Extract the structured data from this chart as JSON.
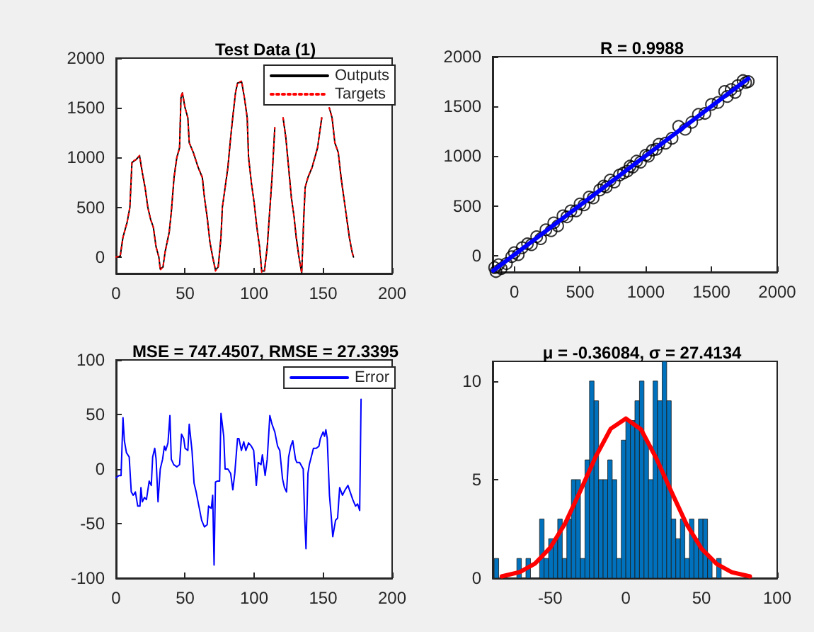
{
  "chart_data": [
    {
      "type": "line",
      "title": "Test Data (1)",
      "xlim": [
        0,
        200
      ],
      "xticks": [
        0,
        50,
        100,
        150,
        200
      ],
      "ylim": [
        -165,
        2000
      ],
      "yticks": [
        0,
        500,
        1000,
        1500,
        2000
      ],
      "legend": "top right",
      "grid": false,
      "x": [
        0,
        3,
        5,
        8,
        10,
        11.5,
        14.5,
        17,
        19,
        21,
        23,
        25,
        27,
        29,
        31,
        32,
        34,
        35.5,
        38.5,
        40,
        42,
        44,
        46,
        47,
        48,
        50,
        52,
        53,
        56,
        59.5,
        62.5,
        64,
        66,
        68,
        70,
        72,
        74,
        76,
        77,
        79,
        81,
        83,
        84.5,
        86.5,
        88,
        91,
        93,
        95,
        96,
        98,
        100,
        102,
        104,
        105.5,
        107.5,
        109.5,
        111,
        113,
        115,
        117,
        119,
        121,
        123,
        125,
        127,
        129,
        130.5,
        132.5,
        134.5,
        136,
        137,
        139,
        142,
        146,
        149,
        151,
        153,
        154.5,
        156.5,
        158.5,
        161,
        163,
        165,
        167,
        169,
        171,
        172
      ],
      "series": [
        {
          "name": "Outputs",
          "color": "#000000",
          "line_style": "solid",
          "values": [
            0,
            10,
            200,
            350,
            500,
            950,
            980,
            1020,
            850,
            700,
            500,
            380,
            300,
            100,
            0,
            -120,
            -100,
            50,
            250,
            450,
            800,
            1000,
            1100,
            1600,
            1650,
            1500,
            1400,
            1150,
            1050,
            900,
            800,
            600,
            400,
            150,
            0,
            -130,
            -100,
            200,
            500,
            700,
            900,
            1200,
            1400,
            1650,
            1750,
            1760,
            1600,
            1400,
            1000,
            750,
            550,
            300,
            100,
            -140,
            -140,
            100,
            400,
            800,
            1300,
            null,
            null,
            1400,
            1200,
            900,
            600,
            400,
            200,
            0,
            -160,
            400,
            700,
            800,
            900,
            1100,
            1400,
            null,
            null,
            1500,
            1400,
            1150,
            1050,
            800,
            600,
            400,
            200,
            50,
            0
          ]
        },
        {
          "name": "Targets",
          "color": "#ff0000",
          "line_style": "dotted",
          "values": [
            0,
            10,
            200,
            350,
            500,
            960,
            980,
            1020,
            850,
            700,
            500,
            380,
            300,
            100,
            0,
            -130,
            -100,
            50,
            250,
            450,
            800,
            1000,
            1100,
            1610,
            1660,
            1500,
            1400,
            1150,
            1050,
            900,
            800,
            600,
            400,
            150,
            0,
            -140,
            -100,
            200,
            500,
            700,
            900,
            1200,
            1400,
            1650,
            1750,
            1770,
            1600,
            1400,
            1000,
            750,
            550,
            300,
            100,
            -150,
            -140,
            100,
            400,
            800,
            1300,
            null,
            null,
            1400,
            1200,
            900,
            600,
            400,
            200,
            0,
            -160,
            400,
            700,
            800,
            900,
            1100,
            1400,
            null,
            null,
            1500,
            1400,
            1150,
            1050,
            800,
            600,
            400,
            200,
            50,
            0
          ]
        }
      ]
    },
    {
      "type": "scatter",
      "title": "R = 0.9988",
      "xlim": [
        -165,
        2000
      ],
      "xticks": [
        0,
        500,
        1000,
        1500,
        2000
      ],
      "ylim": [
        -165,
        2000
      ],
      "yticks": [
        0,
        500,
        1000,
        1500,
        2000
      ],
      "grid": false,
      "series": [
        {
          "type": "scatter",
          "color": "#000000",
          "marker": "circle",
          "x": [
            -150,
            -140,
            -120,
            -100,
            -60,
            -20,
            0,
            30,
            60,
            100,
            130,
            170,
            200,
            240,
            280,
            300,
            330,
            370,
            400,
            430,
            470,
            500,
            530,
            570,
            600,
            650,
            680,
            700,
            730,
            760,
            800,
            830,
            860,
            880,
            900,
            930,
            960,
            1000,
            1020,
            1050,
            1080,
            1100,
            1150,
            1200,
            1250,
            1300,
            1350,
            1400,
            1450,
            1500,
            1550,
            1600,
            1620,
            1650,
            1680,
            1700,
            1740,
            1760,
            1780
          ],
          "values": [
            -120,
            -160,
            -90,
            -130,
            -80,
            -10,
            30,
            10,
            80,
            120,
            110,
            190,
            170,
            260,
            250,
            330,
            300,
            400,
            390,
            450,
            450,
            520,
            510,
            590,
            580,
            660,
            700,
            690,
            760,
            740,
            810,
            830,
            850,
            900,
            890,
            950,
            940,
            1010,
            1000,
            1060,
            1070,
            1120,
            1130,
            1180,
            1300,
            1270,
            1340,
            1420,
            1430,
            1520,
            1540,
            1650,
            1600,
            1670,
            1640,
            1710,
            1760,
            1740,
            1750
          ]
        },
        {
          "type": "line",
          "color": "#0000ff",
          "x": [
            -160,
            1780
          ],
          "values": [
            -150,
            1780
          ]
        }
      ]
    },
    {
      "type": "line",
      "title": "MSE = 747.4507, RMSE = 27.3395",
      "xlim": [
        0,
        200
      ],
      "xticks": [
        0,
        50,
        100,
        150,
        200
      ],
      "ylim": [
        -100,
        100
      ],
      "yticks": [
        -100,
        -50,
        0,
        50,
        100
      ],
      "legend": "top right",
      "grid": false,
      "series": [
        {
          "name": "Error",
          "color": "#0000ff",
          "line_style": "solid",
          "x": [
            0,
            2,
            3.6,
            5,
            6,
            7.5,
            9.5,
            11,
            12.4,
            14,
            15.7,
            17.3,
            18,
            19,
            20.6,
            22,
            24,
            25.5,
            26.5,
            28,
            29,
            30.4,
            32,
            33.7,
            35,
            36,
            37.6,
            39,
            40,
            41.8,
            44,
            46,
            47.4,
            49,
            50,
            52,
            53,
            55,
            56.5,
            58,
            60,
            62,
            64,
            66,
            67,
            69,
            70,
            71,
            72,
            73.5,
            75,
            76,
            78,
            79,
            81,
            83,
            84.6,
            86,
            88,
            89,
            90.8,
            92.5,
            94,
            96,
            98,
            99.7,
            101.6,
            103,
            105,
            106,
            108,
            109.5,
            111.4,
            113,
            115,
            117,
            118.6,
            120.6,
            122,
            123.5,
            125,
            126.6,
            128,
            130,
            131,
            133,
            135.6,
            136.6,
            137.6,
            139,
            140,
            141,
            143,
            145,
            147,
            148,
            150,
            151,
            152,
            153,
            154.6,
            156,
            157,
            159,
            160.5,
            162,
            164,
            166,
            168,
            169.6,
            171.5,
            173.5,
            175,
            176.5,
            177.5
          ],
          "values": [
            -8,
            -6,
            -6,
            47,
            26,
            15,
            11,
            -21,
            -24,
            -21,
            -34,
            -34,
            -17,
            -30,
            -26,
            -28,
            -11,
            -15,
            11,
            19,
            9,
            -30,
            0,
            9,
            21,
            17,
            24,
            49,
            9,
            4,
            2,
            4,
            32,
            28,
            19,
            17,
            41,
            17,
            -13,
            -21,
            -34,
            -47,
            -53,
            -51,
            -34,
            -36,
            -24,
            -88,
            -12,
            -11,
            -11,
            51,
            30,
            0,
            0,
            -4,
            -19,
            -4,
            28,
            28,
            17,
            25,
            17,
            24,
            21,
            17,
            -15,
            6,
            4,
            13,
            -6,
            9,
            49,
            41,
            34,
            21,
            17,
            -9,
            -17,
            -21,
            11,
            21,
            26,
            9,
            6,
            6,
            0,
            -43,
            -73,
            -4,
            4,
            9,
            19,
            19,
            21,
            28,
            34,
            30,
            36,
            28,
            -24,
            -45,
            -62,
            -47,
            -45,
            -17,
            -24,
            -19,
            -15,
            -21,
            -28,
            -34,
            -32,
            -38,
            64
          ]
        }
      ]
    },
    {
      "type": "histogram",
      "title": "μ = -0.36084, σ = 27.4134",
      "xlim": [
        -88,
        100
      ],
      "xticks": [
        -50,
        0,
        50,
        100
      ],
      "ylim": [
        0,
        11
      ],
      "yticks": [
        0,
        5,
        10
      ],
      "grid": false,
      "series": [
        {
          "type": "histogram",
          "color": "#0072bd",
          "bins": [
            -87,
            -84,
            -81,
            -78,
            -75,
            -72,
            -69,
            -66,
            -63,
            -60,
            -57,
            -54,
            -51,
            -48,
            -45,
            -42,
            -39,
            -36,
            -33,
            -30,
            -27,
            -24,
            -21,
            -18,
            -15,
            -12,
            -9,
            -6,
            -3,
            0,
            3,
            6,
            9,
            12,
            15,
            18,
            21,
            24,
            27,
            30,
            33,
            36,
            39,
            42,
            45,
            48,
            51,
            54,
            57,
            60,
            63
          ],
          "values": [
            1,
            0,
            0,
            0,
            0,
            1,
            0,
            1,
            0,
            0,
            3,
            1,
            2,
            2,
            3,
            1,
            3,
            5,
            5,
            1,
            6,
            10,
            9,
            5,
            5,
            6,
            5,
            1,
            7,
            8,
            8,
            9,
            10,
            7,
            5,
            10,
            9,
            11,
            9,
            3,
            2,
            3,
            1,
            3,
            2,
            3,
            3,
            1,
            0,
            1
          ]
        },
        {
          "type": "line",
          "color": "#ff0000",
          "x": [
            -82,
            -70,
            -60,
            -50,
            -40,
            -30,
            -20,
            -10,
            0,
            10,
            20,
            30,
            40,
            50,
            60,
            70,
            82
          ],
          "values": [
            0.09,
            0.31,
            0.74,
            1.54,
            2.79,
            4.44,
            6.15,
            7.58,
            8.1,
            7.55,
            6.1,
            4.4,
            2.75,
            1.5,
            0.72,
            0.3,
            0.09
          ]
        }
      ]
    }
  ]
}
